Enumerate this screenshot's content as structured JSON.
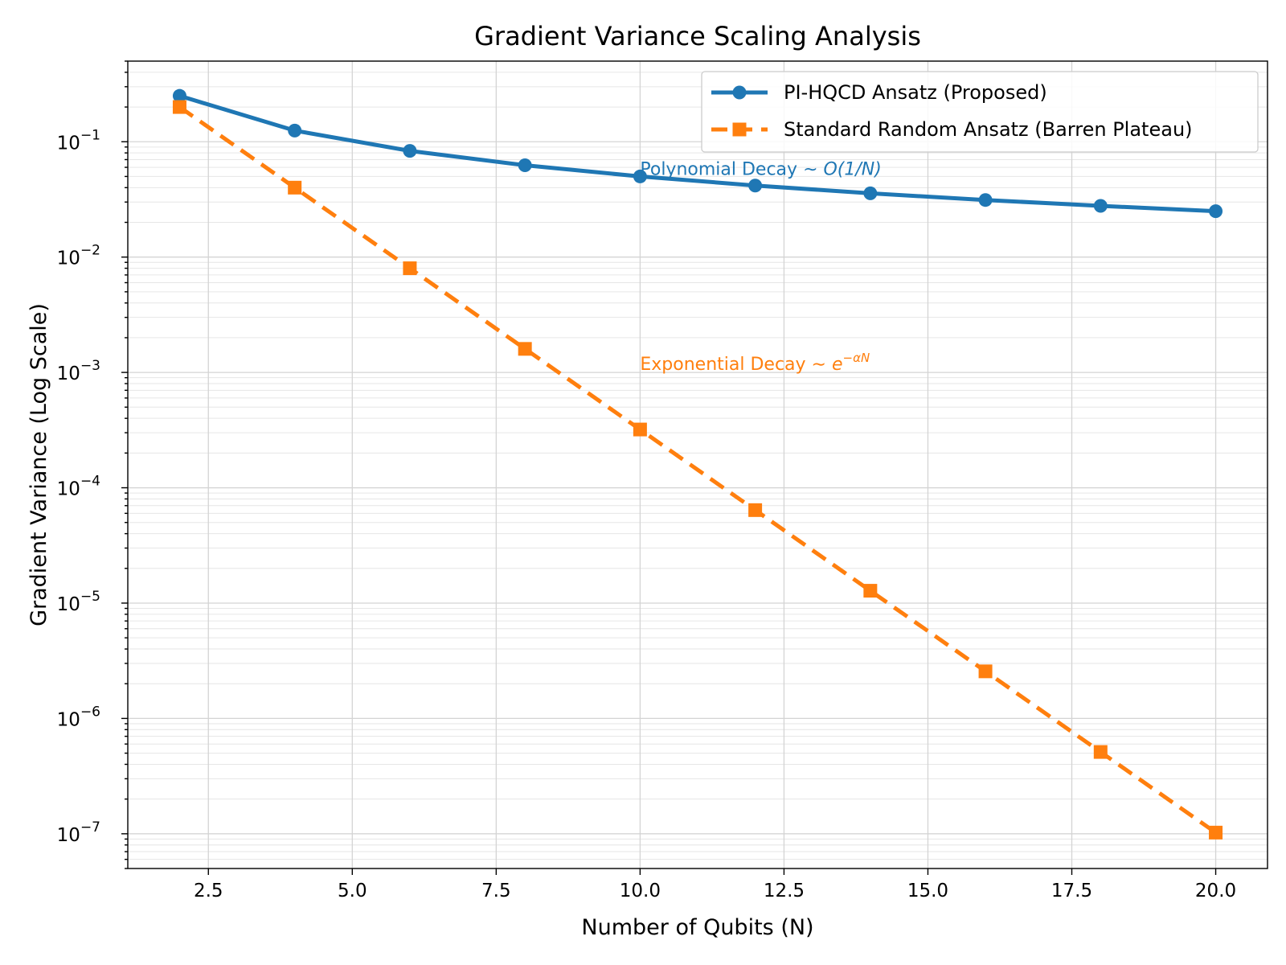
{
  "chart_data": {
    "type": "line",
    "title": "Gradient Variance Scaling Analysis",
    "xlabel": "Number of Qubits (N)",
    "ylabel": "Gradient Variance (Log Scale)",
    "x": [
      2,
      4,
      6,
      8,
      10,
      12,
      14,
      16,
      18,
      20
    ],
    "xlim": [
      1.1,
      20.9
    ],
    "ylim": [
      5e-08,
      0.5
    ],
    "yscale": "log",
    "grid": "both",
    "legend_position": "upper-right",
    "x_ticks": [
      {
        "value": 2.5,
        "label": "2.5"
      },
      {
        "value": 5.0,
        "label": "5.0"
      },
      {
        "value": 7.5,
        "label": "7.5"
      },
      {
        "value": 10.0,
        "label": "10.0"
      },
      {
        "value": 12.5,
        "label": "12.5"
      },
      {
        "value": 15.0,
        "label": "15.0"
      },
      {
        "value": 17.5,
        "label": "17.5"
      },
      {
        "value": 20.0,
        "label": "20.0"
      }
    ],
    "y_ticks": [
      {
        "value": 0.1,
        "base": "10",
        "exp": "−1"
      },
      {
        "value": 0.01,
        "base": "10",
        "exp": "−2"
      },
      {
        "value": 0.001,
        "base": "10",
        "exp": "−3"
      },
      {
        "value": 0.0001,
        "base": "10",
        "exp": "−4"
      },
      {
        "value": 1e-05,
        "base": "10",
        "exp": "−5"
      },
      {
        "value": 1e-06,
        "base": "10",
        "exp": "−6"
      },
      {
        "value": 1e-07,
        "base": "10",
        "exp": "−7"
      }
    ],
    "series": [
      {
        "name": "PI-HQCD Ansatz (Proposed)",
        "color": "#1f77b4",
        "marker": "circle",
        "line_style": "solid",
        "values": [
          0.25,
          0.125,
          0.0833,
          0.0625,
          0.05,
          0.0417,
          0.0357,
          0.03125,
          0.0278,
          0.025
        ]
      },
      {
        "name": "Standard Random Ansatz (Barren Plateau)",
        "color": "#ff7f0e",
        "marker": "square",
        "line_style": "dashed",
        "values": [
          0.2,
          0.04,
          0.008,
          0.0016,
          0.00032,
          6.4e-05,
          1.28e-05,
          2.56e-06,
          5.12e-07,
          1.024e-07
        ]
      }
    ],
    "annotations": [
      {
        "text": "Polynomial Decay ",
        "math": "∼ O(1/N)",
        "x": 10,
        "y": 0.05,
        "color": "#1f77b4"
      },
      {
        "text": "Exponential Decay ",
        "math": "∼ e",
        "sup": "−αN",
        "x": 10,
        "y": 0.001,
        "color": "#ff7f0e"
      }
    ]
  }
}
